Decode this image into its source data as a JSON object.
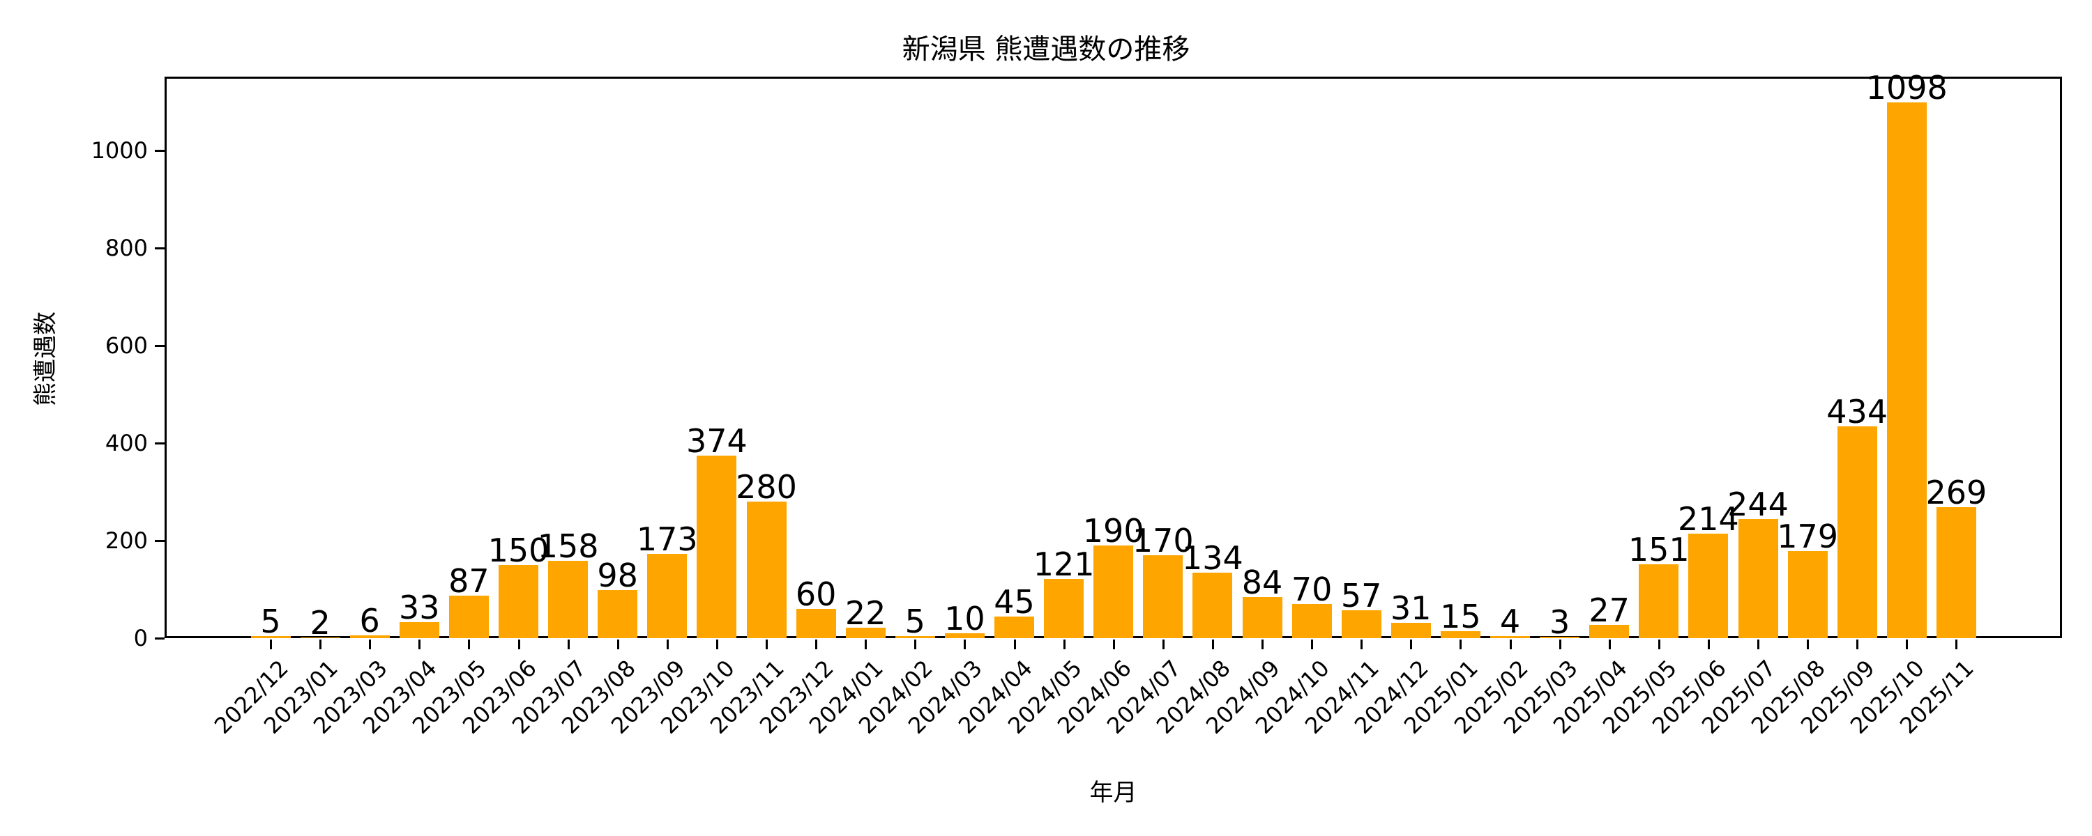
{
  "chart_data": {
    "type": "bar",
    "title": "新潟県 熊遭遇数の推移",
    "xlabel": "年月",
    "ylabel": "熊遭遇数",
    "ylim": [
      0,
      1150
    ],
    "yticks": [
      0,
      200,
      400,
      600,
      800,
      1000
    ],
    "grid": false,
    "legend": null,
    "bar_color": "#FFA500",
    "categories": [
      "2022/12",
      "2023/01",
      "2023/03",
      "2023/04",
      "2023/05",
      "2023/06",
      "2023/07",
      "2023/08",
      "2023/09",
      "2023/10",
      "2023/11",
      "2023/12",
      "2024/01",
      "2024/02",
      "2024/03",
      "2024/04",
      "2024/05",
      "2024/06",
      "2024/07",
      "2024/08",
      "2024/09",
      "2024/10",
      "2024/11",
      "2024/12",
      "2025/01",
      "2025/02",
      "2025/03",
      "2025/04",
      "2025/05",
      "2025/06",
      "2025/07",
      "2025/08",
      "2025/09",
      "2025/10",
      "2025/11"
    ],
    "values": [
      5,
      2,
      6,
      33,
      87,
      150,
      158,
      98,
      173,
      374,
      280,
      60,
      22,
      5,
      10,
      45,
      121,
      190,
      170,
      134,
      84,
      70,
      57,
      31,
      15,
      4,
      3,
      27,
      151,
      214,
      244,
      179,
      434,
      1098,
      269
    ]
  }
}
